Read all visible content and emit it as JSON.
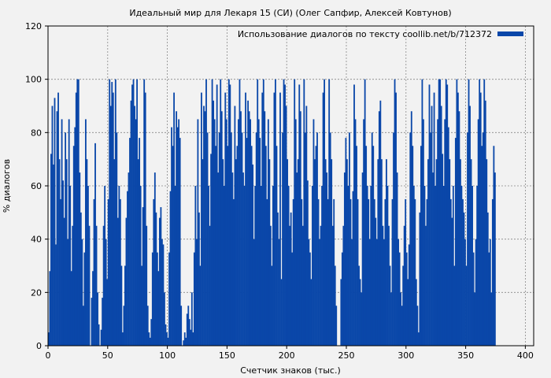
{
  "chart_data": {
    "type": "bar",
    "title": "Идеальный мир для Лекаря 15 (СИ) (Олег Сапфир, Алексей Ковтунов)",
    "xlabel": "Счетчик знаков (тыс.)",
    "ylabel": "% диалогов",
    "xlim": [
      0,
      407
    ],
    "ylim": [
      0,
      120
    ],
    "xticks": [
      0,
      50,
      100,
      150,
      200,
      250,
      300,
      350,
      400
    ],
    "yticks": [
      0,
      20,
      40,
      60,
      80,
      100,
      120
    ],
    "grid": true,
    "legend": {
      "position": "top-right"
    },
    "series": [
      {
        "name": "Использование диалогов по тексту coollib.net/b/712372",
        "color": "#0a47a9",
        "x_start": 0,
        "x_step": 1,
        "values": [
          5,
          28,
          72,
          90,
          68,
          93,
          38,
          88,
          95,
          70,
          55,
          85,
          62,
          48,
          80,
          70,
          40,
          85,
          60,
          28,
          45,
          75,
          82,
          95,
          100,
          100,
          65,
          50,
          40,
          15,
          35,
          85,
          70,
          60,
          45,
          0,
          18,
          28,
          55,
          76,
          45,
          20,
          8,
          0,
          6,
          18,
          45,
          60,
          40,
          25,
          55,
          100,
          90,
          99,
          95,
          70,
          100,
          80,
          48,
          60,
          55,
          30,
          5,
          15,
          30,
          48,
          58,
          65,
          78,
          92,
          98,
          100,
          90,
          85,
          100,
          70,
          78,
          60,
          30,
          52,
          100,
          95,
          45,
          15,
          5,
          3,
          10,
          35,
          55,
          65,
          50,
          35,
          28,
          48,
          52,
          40,
          38,
          20,
          8,
          5,
          3,
          35,
          58,
          82,
          75,
          95,
          60,
          88,
          82,
          85,
          78,
          15,
          0,
          2,
          5,
          3,
          12,
          15,
          10,
          6,
          20,
          5,
          35,
          60,
          40,
          85,
          50,
          30,
          95,
          70,
          90,
          88,
          100,
          80,
          60,
          45,
          72,
          100,
          92,
          85,
          75,
          98,
          65,
          80,
          100,
          88,
          70,
          60,
          95,
          85,
          75,
          100,
          98,
          80,
          65,
          55,
          90,
          70,
          75,
          85,
          100,
          88,
          80,
          65,
          60,
          95,
          78,
          92,
          88,
          85,
          75,
          68,
          40,
          60,
          80,
          100,
          85,
          78,
          60,
          95,
          100,
          88,
          75,
          55,
          85,
          70,
          45,
          30,
          60,
          95,
          100,
          75,
          50,
          40,
          95,
          25,
          80,
          100,
          98,
          90,
          70,
          60,
          45,
          50,
          35,
          55,
          100,
          85,
          65,
          70,
          98,
          88,
          55,
          45,
          100,
          80,
          90,
          62,
          40,
          35,
          25,
          60,
          85,
          70,
          75,
          80,
          55,
          40,
          45,
          60,
          95,
          100,
          70,
          65,
          55,
          100,
          80,
          70,
          45,
          55,
          30,
          15,
          0,
          0,
          0,
          25,
          35,
          45,
          65,
          78,
          70,
          60,
          80,
          55,
          40,
          58,
          98,
          85,
          75,
          55,
          30,
          25,
          20,
          65,
          85,
          100,
          75,
          60,
          55,
          40,
          60,
          80,
          75,
          55,
          48,
          40,
          70,
          88,
          92,
          70,
          45,
          40,
          55,
          70,
          60,
          45,
          30,
          20,
          55,
          80,
          100,
          95,
          65,
          40,
          35,
          20,
          15,
          30,
          45,
          55,
          35,
          25,
          38,
          80,
          88,
          75,
          60,
          55,
          25,
          15,
          5,
          50,
          75,
          100,
          85,
          60,
          45,
          55,
          70,
          98,
          80,
          90,
          65,
          95,
          60,
          70,
          85,
          100,
          100,
          90,
          72,
          60,
          85,
          100,
          98,
          82,
          70,
          55,
          48,
          60,
          30,
          78,
          100,
          95,
          88,
          70,
          60,
          55,
          50,
          40,
          30,
          80,
          100,
          90,
          70,
          60,
          35,
          20,
          40,
          60,
          85,
          100,
          95,
          75,
          80,
          100,
          92,
          70,
          50,
          35,
          40,
          20,
          55,
          75,
          65
        ]
      }
    ]
  }
}
